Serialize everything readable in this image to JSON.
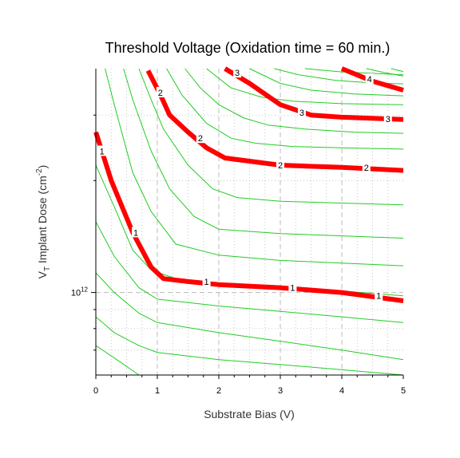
{
  "chart_data": {
    "type": "line",
    "title": "Threshold Voltage (Oxidation time = 60 min.)",
    "xlabel": "Substrate Bias (V)",
    "ylabel": "V_T Implant Dose (cm^-2)",
    "ylabel_parts": {
      "main": "V",
      "sub": "T",
      "rest": " Implant Dose (cm",
      "sup": "-2",
      "close": ")"
    },
    "xlim": [
      0,
      5
    ],
    "ylim": [
      600000000000.0,
      4000000000000.0
    ],
    "y_scale": "log",
    "x_ticks": [
      "0",
      "1",
      "2",
      "3",
      "4",
      "5"
    ],
    "y_tick_label": {
      "base": "10",
      "exp": "12",
      "value": 1000000000000.0
    },
    "grid": true,
    "colors": {
      "highlight": "#ff0000",
      "contour": "#22cc22",
      "grid": "#bbbbbb",
      "axis": "#000000"
    },
    "highlight_series": [
      {
        "level": "1",
        "points": [
          [
            0,
            2700000000000.0
          ],
          [
            0.25,
            2000000000000.0
          ],
          [
            0.6,
            1450000000000.0
          ],
          [
            0.9,
            1170000000000.0
          ],
          [
            1.1,
            1090000000000.0
          ],
          [
            1.5,
            1070000000000.0
          ],
          [
            2.0,
            1050000000000.0
          ],
          [
            3.0,
            1030000000000.0
          ],
          [
            4.0,
            1000000000000.0
          ],
          [
            5.0,
            950000000000.0
          ]
        ],
        "labels": [
          [
            0.1,
            2400000000000.0
          ],
          [
            0.65,
            1450000000000.0
          ],
          [
            1.8,
            1070000000000.0
          ],
          [
            3.2,
            1030000000000.0
          ],
          [
            4.6,
            980000000000.0
          ]
        ]
      },
      {
        "level": "2",
        "points": [
          [
            0.85,
            3950000000000.0
          ],
          [
            1.05,
            3400000000000.0
          ],
          [
            1.2,
            3000000000000.0
          ],
          [
            1.5,
            2700000000000.0
          ],
          [
            1.8,
            2450000000000.0
          ],
          [
            2.1,
            2300000000000.0
          ],
          [
            3.0,
            2200000000000.0
          ],
          [
            4.0,
            2170000000000.0
          ],
          [
            5.0,
            2130000000000.0
          ]
        ],
        "labels": [
          [
            1.05,
            3450000000000.0
          ],
          [
            1.7,
            2600000000000.0
          ],
          [
            3.0,
            2200000000000.0
          ],
          [
            4.4,
            2170000000000.0
          ]
        ]
      },
      {
        "level": "3",
        "points": [
          [
            2.1,
            4000000000000.0
          ],
          [
            2.5,
            3650000000000.0
          ],
          [
            3.0,
            3200000000000.0
          ],
          [
            3.5,
            3000000000000.0
          ],
          [
            4.0,
            2960000000000.0
          ],
          [
            4.5,
            2940000000000.0
          ],
          [
            5.0,
            2920000000000.0
          ]
        ],
        "labels": [
          [
            2.3,
            3900000000000.0
          ],
          [
            3.35,
            3050000000000.0
          ],
          [
            4.75,
            2930000000000.0
          ]
        ]
      },
      {
        "level": "4",
        "points": [
          [
            4.0,
            4000000000000.0
          ],
          [
            4.5,
            3700000000000.0
          ],
          [
            5.0,
            3500000000000.0
          ]
        ],
        "labels": [
          [
            4.45,
            3750000000000.0
          ]
        ]
      }
    ],
    "contour_series": [
      [
        [
          0,
          720000000000.0
        ],
        [
          0.4,
          650000000000.0
        ],
        [
          0.7,
          600000000000.0
        ]
      ],
      [
        [
          0,
          860000000000.0
        ],
        [
          0.3,
          780000000000.0
        ],
        [
          0.7,
          720000000000.0
        ],
        [
          1.0,
          690000000000.0
        ],
        [
          2.0,
          660000000000.0
        ],
        [
          3.0,
          640000000000.0
        ],
        [
          4.0,
          620000000000.0
        ],
        [
          5.0,
          600000000000.0
        ]
      ],
      [
        [
          0,
          1130000000000.0
        ],
        [
          0.3,
          1000000000000.0
        ],
        [
          0.7,
          880000000000.0
        ],
        [
          1.0,
          830000000000.0
        ],
        [
          2.0,
          780000000000.0
        ],
        [
          3.0,
          740000000000.0
        ],
        [
          4.0,
          700000000000.0
        ],
        [
          5.0,
          660000000000.0
        ]
      ],
      [
        [
          0,
          1550000000000.0
        ],
        [
          0.3,
          1250000000000.0
        ],
        [
          0.7,
          1030000000000.0
        ],
        [
          1.0,
          960000000000.0
        ],
        [
          2.0,
          920000000000.0
        ],
        [
          3.0,
          890000000000.0
        ],
        [
          4.0,
          860000000000.0
        ],
        [
          5.0,
          830000000000.0
        ]
      ],
      [
        [
          0,
          2200000000000.0
        ],
        [
          0.3,
          1700000000000.0
        ],
        [
          0.6,
          1300000000000.0
        ],
        [
          0.9,
          1150000000000.0
        ],
        [
          1.3,
          1090000000000.0
        ],
        [
          2.0,
          1060000000000.0
        ],
        [
          3.0,
          1040000000000.0
        ],
        [
          4.0,
          1010000000000.0
        ],
        [
          5.0,
          980000000000.0
        ]
      ],
      [
        [
          0.15,
          4000000000000.0
        ],
        [
          0.3,
          3200000000000.0
        ],
        [
          0.6,
          2100000000000.0
        ],
        [
          0.9,
          1650000000000.0
        ],
        [
          1.3,
          1350000000000.0
        ],
        [
          2.0,
          1260000000000.0
        ],
        [
          3.0,
          1220000000000.0
        ],
        [
          4.0,
          1200000000000.0
        ],
        [
          5.0,
          1180000000000.0
        ]
      ],
      [
        [
          0.45,
          4000000000000.0
        ],
        [
          0.6,
          3300000000000.0
        ],
        [
          0.9,
          2400000000000.0
        ],
        [
          1.2,
          1900000000000.0
        ],
        [
          1.6,
          1600000000000.0
        ],
        [
          2.0,
          1480000000000.0
        ],
        [
          3.0,
          1440000000000.0
        ],
        [
          4.0,
          1420000000000.0
        ],
        [
          5.0,
          1400000000000.0
        ]
      ],
      [
        [
          0.7,
          4000000000000.0
        ],
        [
          0.9,
          3300000000000.0
        ],
        [
          1.1,
          2750000000000.0
        ],
        [
          1.5,
          2200000000000.0
        ],
        [
          1.9,
          1900000000000.0
        ],
        [
          2.3,
          1800000000000.0
        ],
        [
          3.0,
          1760000000000.0
        ],
        [
          4.0,
          1740000000000.0
        ],
        [
          5.0,
          1720000000000.0
        ]
      ],
      [
        [
          1.15,
          4000000000000.0
        ],
        [
          1.4,
          3400000000000.0
        ],
        [
          1.8,
          2850000000000.0
        ],
        [
          2.2,
          2600000000000.0
        ],
        [
          2.6,
          2520000000000.0
        ],
        [
          3.2,
          2470000000000.0
        ],
        [
          4.0,
          2450000000000.0
        ],
        [
          5.0,
          2430000000000.0
        ]
      ],
      [
        [
          1.45,
          4000000000000.0
        ],
        [
          1.7,
          3550000000000.0
        ],
        [
          2.0,
          3200000000000.0
        ],
        [
          2.4,
          2950000000000.0
        ],
        [
          2.8,
          2820000000000.0
        ],
        [
          3.4,
          2750000000000.0
        ],
        [
          4.2,
          2700000000000.0
        ],
        [
          5.0,
          2680000000000.0
        ]
      ],
      [
        [
          1.8,
          4000000000000.0
        ],
        [
          2.2,
          3550000000000.0
        ],
        [
          2.7,
          3350000000000.0
        ],
        [
          3.2,
          3270000000000.0
        ],
        [
          4.0,
          3220000000000.0
        ],
        [
          5.0,
          3200000000000.0
        ]
      ],
      [
        [
          2.5,
          4000000000000.0
        ],
        [
          3.0,
          3650000000000.0
        ],
        [
          3.5,
          3500000000000.0
        ],
        [
          4.2,
          3420000000000.0
        ],
        [
          5.0,
          3380000000000.0
        ]
      ],
      [
        [
          2.9,
          4000000000000.0
        ],
        [
          3.3,
          3850000000000.0
        ],
        [
          3.9,
          3720000000000.0
        ],
        [
          4.5,
          3660000000000.0
        ],
        [
          5.0,
          3640000000000.0
        ]
      ],
      [
        [
          3.4,
          4000000000000.0
        ],
        [
          4.0,
          3920000000000.0
        ],
        [
          5.0,
          3850000000000.0
        ]
      ],
      [
        [
          4.4,
          4000000000000.0
        ],
        [
          4.7,
          3900000000000.0
        ],
        [
          5.0,
          3820000000000.0
        ]
      ],
      [
        [
          4.8,
          4000000000000.0
        ],
        [
          5.0,
          3930000000000.0
        ]
      ]
    ]
  }
}
